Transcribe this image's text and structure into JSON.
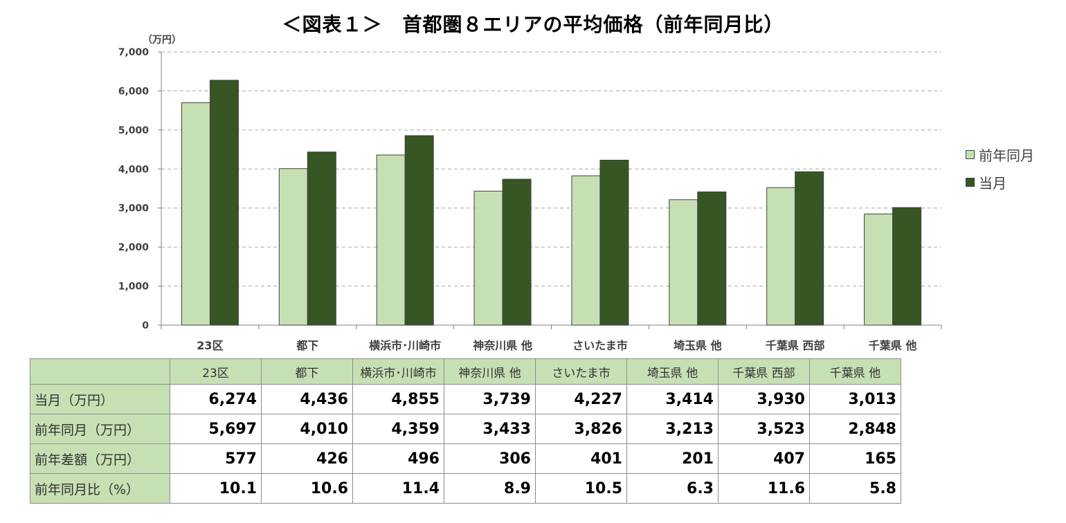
{
  "title": "＜図表１＞　首都圏８エリアの平均価格（前年同月比）",
  "colors": {
    "prev_year": "#c6e0b4",
    "current": "#375623",
    "grid": "#a6a6a6",
    "header_bg": "#c6e0b4"
  },
  "chart_data": {
    "type": "bar",
    "title": "＜図表１＞　首都圏８エリアの平均価格（前年同月比）",
    "ylabel": "（万円）",
    "xlabel": "",
    "ylim": [
      0,
      7000
    ],
    "yticks": [
      "0",
      "1,000",
      "2,000",
      "3,000",
      "4,000",
      "5,000",
      "6,000",
      "7,000"
    ],
    "ytick_values": [
      0,
      1000,
      2000,
      3000,
      4000,
      5000,
      6000,
      7000
    ],
    "grid": true,
    "legend_position": "right",
    "categories": [
      "23区",
      "都下",
      "横浜市･川崎市",
      "神奈川県 他",
      "さいたま市",
      "埼玉県 他",
      "千葉県 西部",
      "千葉県 他"
    ],
    "series": [
      {
        "name": "前年同月",
        "values": [
          5697,
          4010,
          4359,
          3433,
          3826,
          3213,
          3523,
          2848
        ]
      },
      {
        "name": "当月",
        "values": [
          6274,
          4436,
          4855,
          3739,
          4227,
          3414,
          3930,
          3013
        ]
      }
    ]
  },
  "legend": {
    "items": [
      {
        "label": "前年同月"
      },
      {
        "label": "当月"
      }
    ]
  },
  "table": {
    "headers": [
      "23区",
      "都下",
      "横浜市･川崎市",
      "神奈川県 他",
      "さいたま市",
      "埼玉県 他",
      "千葉県 西部",
      "千葉県 他"
    ],
    "rows": [
      {
        "label": "当月（万円）",
        "values": [
          "6,274",
          "4,436",
          "4,855",
          "3,739",
          "4,227",
          "3,414",
          "3,930",
          "3,013"
        ]
      },
      {
        "label": "前年同月（万円）",
        "values": [
          "5,697",
          "4,010",
          "4,359",
          "3,433",
          "3,826",
          "3,213",
          "3,523",
          "2,848"
        ]
      },
      {
        "label": "前年差額（万円）",
        "values": [
          "577",
          "426",
          "496",
          "306",
          "401",
          "201",
          "407",
          "165"
        ]
      },
      {
        "label": "前年同月比（%）",
        "values": [
          "10.1",
          "10.6",
          "11.4",
          "8.9",
          "10.5",
          "6.3",
          "11.6",
          "5.8"
        ]
      }
    ]
  }
}
